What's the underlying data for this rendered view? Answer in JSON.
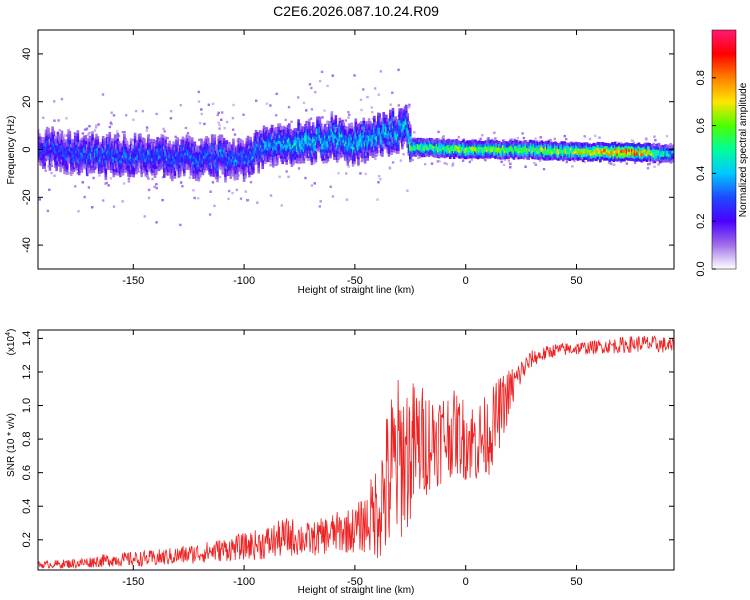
{
  "title": "C2E6.2026.087.10.24.R09",
  "colors": {
    "background": "#ffffff",
    "axis": "#000000",
    "snr_line": "#ee2222",
    "colormap": [
      "#ffffff",
      "#c9b8f0",
      "#8a2be2",
      "#3b10ff",
      "#1e4bff",
      "#00c8ff",
      "#00ff9a",
      "#4cff00",
      "#ffe600",
      "#ff8000",
      "#ff0000",
      "#ff1a75"
    ]
  },
  "chart_data": [
    {
      "type": "heatmap",
      "name": "spectrogram",
      "xlabel": "Height of straight line (km)",
      "ylabel": "Frequency (Hz)",
      "xlim": [
        -193,
        94
      ],
      "ylim": [
        -50,
        50
      ],
      "xticks": [
        -150,
        -100,
        -50,
        0,
        50
      ],
      "xtick_labels": [
        "-150",
        "-100",
        "-50",
        "0",
        "50"
      ],
      "yticks": [
        -40,
        -20,
        0,
        20,
        40
      ],
      "ytick_labels": [
        "-40",
        "-20",
        "0",
        "20",
        "40"
      ],
      "ridge": {
        "x": [
          -193,
          -175,
          -150,
          -125,
          -100,
          -90,
          -75,
          -60,
          -50,
          -40,
          -30,
          -26,
          -25,
          0,
          25,
          50,
          75,
          94
        ],
        "center_hz": [
          1,
          -2,
          -3,
          -3,
          -4,
          2,
          3,
          5,
          3,
          6,
          8,
          10,
          1,
          0,
          0,
          -1,
          -1,
          -2
        ],
        "amplitude": [
          0.3,
          0.35,
          0.35,
          0.35,
          0.35,
          0.4,
          0.45,
          0.45,
          0.45,
          0.45,
          0.45,
          0.45,
          0.6,
          0.7,
          0.65,
          0.75,
          0.95,
          0.45
        ]
      },
      "colorbar": {
        "label": "Normalized spectral amplitude",
        "range": [
          0,
          1
        ],
        "ticks": [
          0.0,
          0.2,
          0.4,
          0.6,
          0.8
        ],
        "tick_labels": [
          "0.0",
          "0.2",
          "0.4",
          "0.6",
          "0.8"
        ]
      }
    },
    {
      "type": "line",
      "name": "snr",
      "xlabel": "Height of straight line (km)",
      "ylabel": "SNR (10 * v/v)",
      "scale_label": "(x10",
      "scale_exponent": "4",
      "scale_close": ")",
      "xlim": [
        -193,
        94
      ],
      "ylim": [
        0.02,
        1.45
      ],
      "xticks": [
        -150,
        -100,
        -50,
        0,
        50
      ],
      "xtick_labels": [
        "-150",
        "-100",
        "-50",
        "0",
        "50"
      ],
      "yticks": [
        0.2,
        0.4,
        0.6,
        0.8,
        1.0,
        1.2,
        1.4
      ],
      "ytick_labels": [
        "0.2",
        "0.4",
        "0.6",
        "0.8",
        "1.0",
        "1.2",
        "1.4"
      ],
      "series": [
        {
          "name": "SNR",
          "x": [
            -193,
            -175,
            -160,
            -140,
            -120,
            -100,
            -90,
            -80,
            -70,
            -60,
            -50,
            -45,
            -40,
            -36,
            -33,
            -30,
            -25,
            -20,
            -15,
            -10,
            -5,
            0,
            5,
            10,
            15,
            20,
            25,
            30,
            40,
            50,
            60,
            70,
            80,
            90,
            94
          ],
          "y": [
            0.05,
            0.06,
            0.08,
            0.09,
            0.12,
            0.16,
            0.18,
            0.22,
            0.2,
            0.24,
            0.26,
            0.3,
            0.38,
            0.5,
            0.6,
            0.68,
            0.72,
            0.78,
            0.8,
            0.82,
            0.84,
            0.8,
            0.78,
            0.82,
            0.95,
            1.08,
            1.2,
            1.28,
            1.33,
            1.34,
            1.35,
            1.36,
            1.37,
            1.36,
            1.35
          ],
          "noise": [
            0.02,
            0.03,
            0.04,
            0.05,
            0.06,
            0.08,
            0.1,
            0.12,
            0.1,
            0.12,
            0.14,
            0.18,
            0.3,
            0.45,
            0.55,
            0.5,
            0.45,
            0.35,
            0.3,
            0.28,
            0.25,
            0.25,
            0.25,
            0.25,
            0.22,
            0.15,
            0.08,
            0.05,
            0.04,
            0.04,
            0.04,
            0.05,
            0.05,
            0.05,
            0.05
          ]
        }
      ]
    }
  ]
}
